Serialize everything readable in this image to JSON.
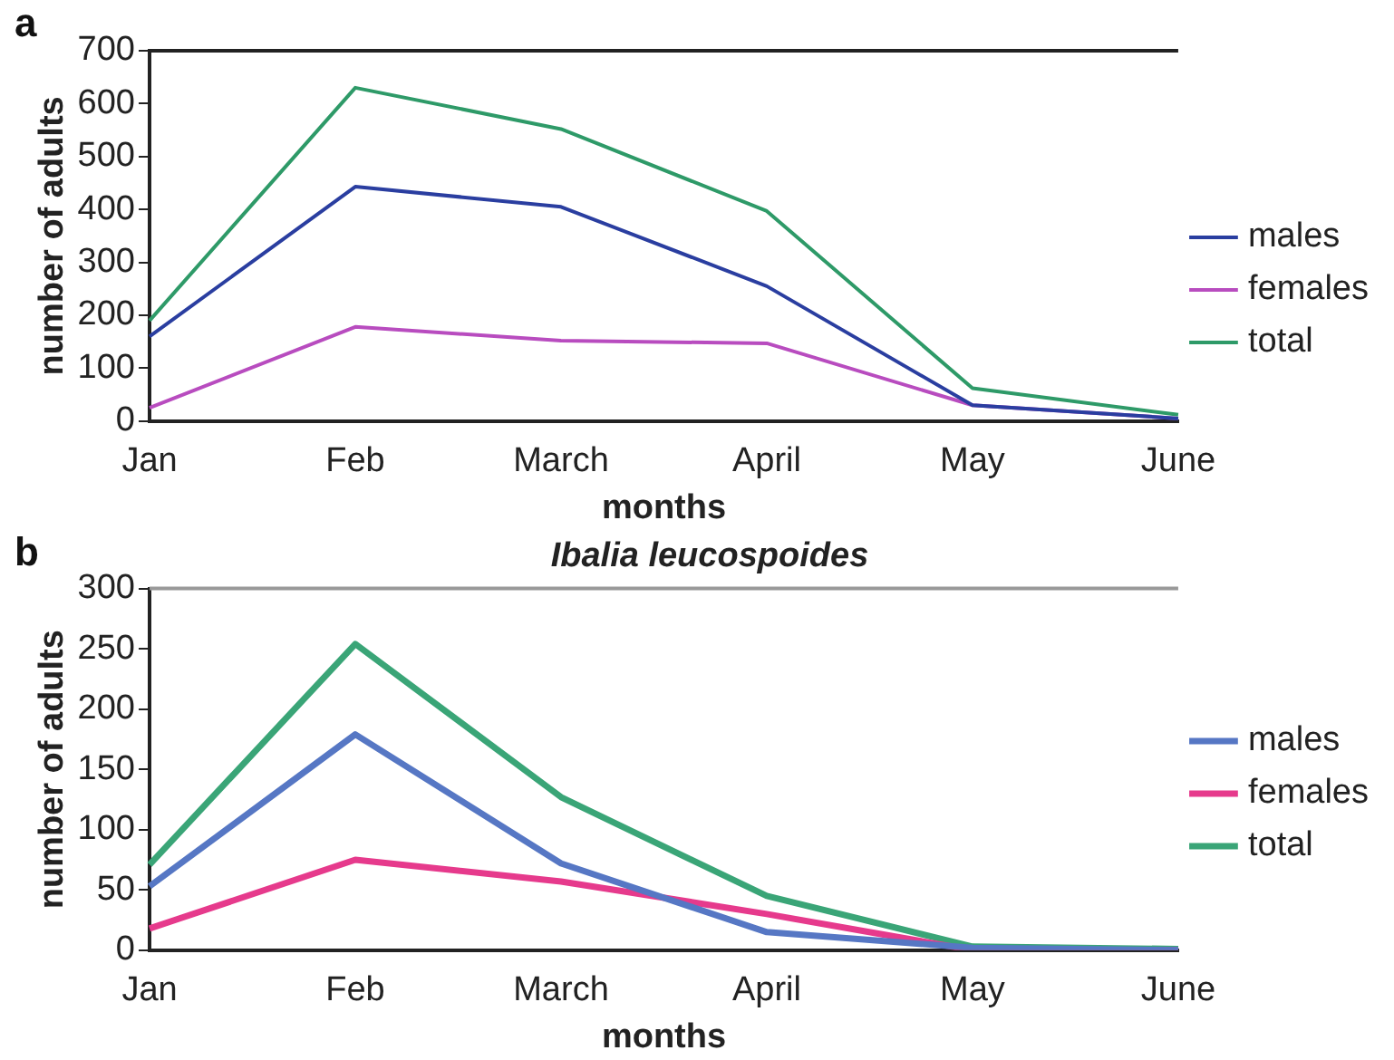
{
  "chart_data": [
    {
      "type": "line",
      "annotations": [
        "a"
      ],
      "xlabel": "months",
      "ylabel": "number of adults",
      "categories": [
        "Jan",
        "Feb",
        "March",
        "April",
        "May",
        "June"
      ],
      "ylim": [
        0,
        700
      ],
      "yticks": [
        0,
        100,
        200,
        300,
        400,
        500,
        600,
        700
      ],
      "grid": false,
      "legend": "right",
      "marker": "none",
      "series": [
        {
          "name": "males",
          "color": "#2a3ea0",
          "values": [
            160,
            443,
            405,
            255,
            30,
            5
          ]
        },
        {
          "name": "females",
          "color": "#b84cbf",
          "values": [
            25,
            178,
            152,
            147,
            30,
            5
          ]
        },
        {
          "name": "total",
          "color": "#2e9a68",
          "values": [
            190,
            630,
            552,
            397,
            62,
            12
          ]
        }
      ]
    },
    {
      "type": "line",
      "annotations": [
        "b"
      ],
      "title": "Ibalia leucospoides",
      "xlabel": "months",
      "ylabel": "number of adults",
      "categories": [
        "Jan",
        "Feb",
        "March",
        "April",
        "May",
        "June"
      ],
      "ylim": [
        0,
        300
      ],
      "yticks": [
        0,
        50,
        100,
        150,
        200,
        250,
        300
      ],
      "grid": false,
      "legend": "right",
      "marker": "none",
      "series": [
        {
          "name": "males",
          "color": "#5677c4",
          "values": [
            53,
            179,
            72,
            15,
            2,
            0
          ]
        },
        {
          "name": "females",
          "color": "#e63a8c",
          "values": [
            18,
            75,
            57,
            30,
            0,
            0
          ]
        },
        {
          "name": "total",
          "color": "#3aa577",
          "values": [
            71,
            254,
            127,
            45,
            3,
            1
          ]
        }
      ]
    }
  ]
}
